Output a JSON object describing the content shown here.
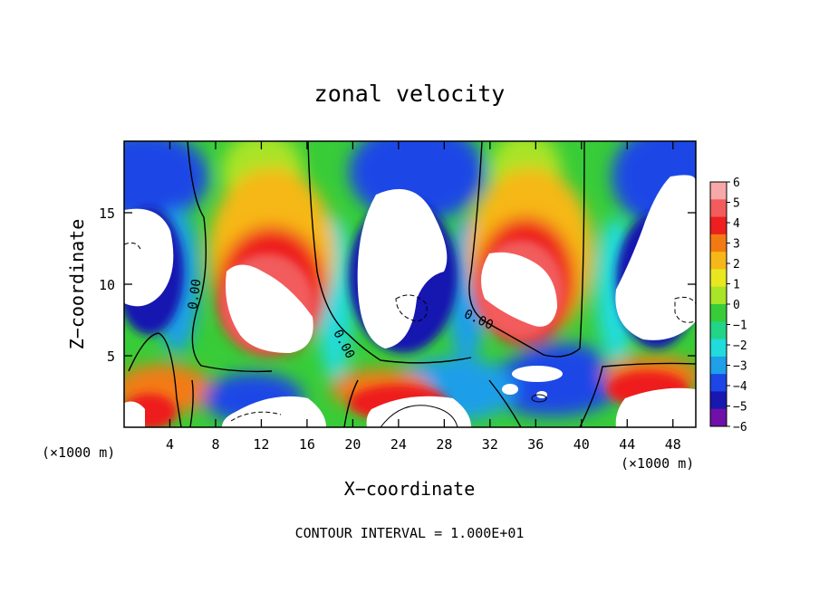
{
  "chart_data": {
    "type": "heatmap",
    "title": "zonal velocity",
    "xlabel": "X−coordinate",
    "ylabel": "Z−coordinate",
    "x_unit_left": "(×1000 m)",
    "x_unit_right": "(×1000 m)",
    "footnote": "CONTOUR INTERVAL = 1.000E+01",
    "xlim": [
      0,
      50
    ],
    "ylim": [
      0,
      20
    ],
    "x_ticks": [
      4,
      8,
      12,
      16,
      20,
      24,
      28,
      32,
      36,
      40,
      44,
      48
    ],
    "y_ticks": [
      5,
      10,
      15
    ],
    "colorbar": {
      "levels": [
        6,
        5,
        4,
        3,
        2,
        1,
        0,
        -1,
        -2,
        -3,
        -4,
        -5,
        -6
      ],
      "colors": [
        "#f7a8a8",
        "#f25c5c",
        "#ee1f1f",
        "#f37a12",
        "#f6b818",
        "#e8e820",
        "#a8e428",
        "#38cc38",
        "#22d486",
        "#20dcdc",
        "#1e9fe8",
        "#1c46e6",
        "#1818b0",
        "#7010a8"
      ]
    },
    "contour_labels": [
      {
        "text": "0.00",
        "x": 6.2,
        "y": 9.3,
        "angle": -82
      },
      {
        "text": "0.00",
        "x": 19.2,
        "y": 5.8,
        "angle": 62
      },
      {
        "text": "0.00",
        "x": 31.0,
        "y": 7.5,
        "angle": 25
      }
    ]
  }
}
